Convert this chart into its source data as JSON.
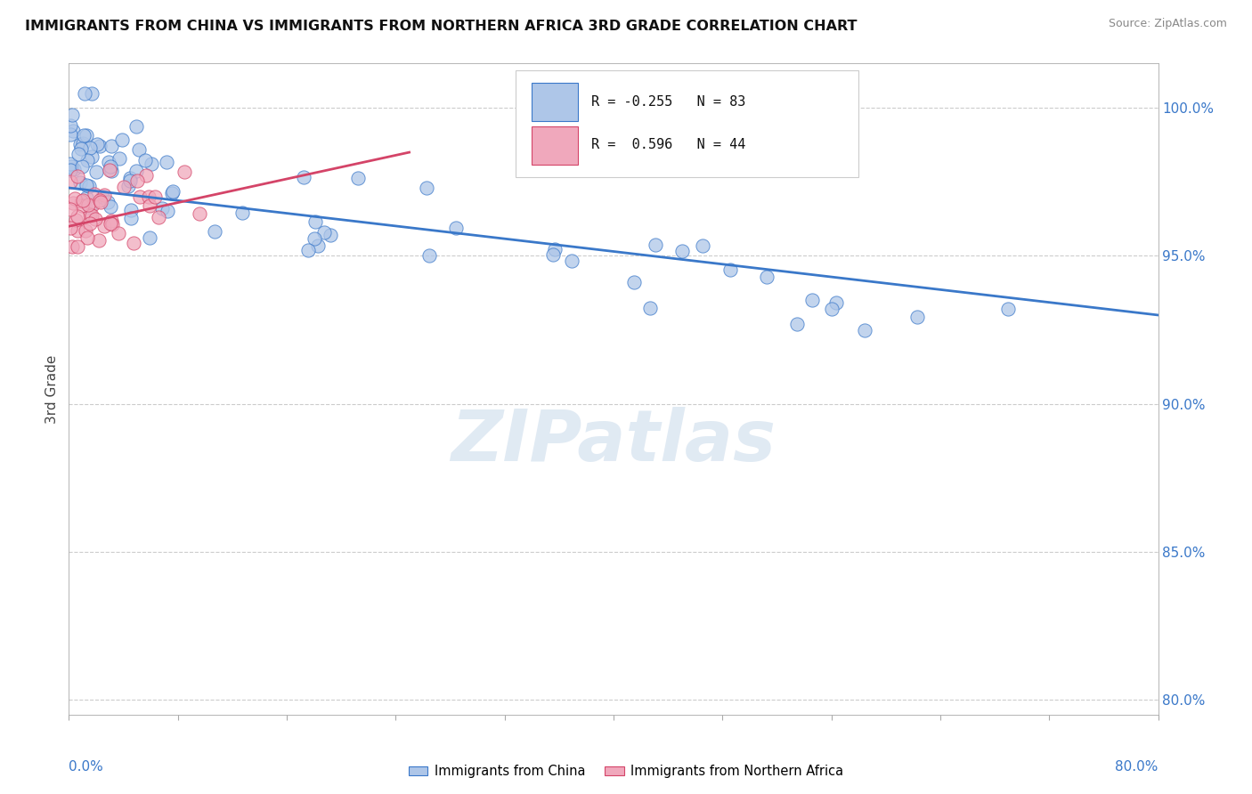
{
  "title": "IMMIGRANTS FROM CHINA VS IMMIGRANTS FROM NORTHERN AFRICA 3RD GRADE CORRELATION CHART",
  "source": "Source: ZipAtlas.com",
  "ylabel": "3rd Grade",
  "yticks": [
    80.0,
    85.0,
    90.0,
    95.0,
    100.0
  ],
  "ytick_labels": [
    "80.0%",
    "85.0%",
    "90.0%",
    "95.0%",
    "100.0%"
  ],
  "xlim": [
    0.0,
    80.0
  ],
  "ylim": [
    79.5,
    101.5
  ],
  "r_china": -0.255,
  "n_china": 83,
  "r_africa": 0.596,
  "n_africa": 44,
  "color_china": "#aec6e8",
  "color_africa": "#f0a8bc",
  "trendline_china": "#3a78c9",
  "trendline_africa": "#d44468",
  "watermark": "ZIPatlas",
  "watermark_color": "#ccdcec",
  "china_trendline_x": [
    0.0,
    80.0
  ],
  "china_trendline_y": [
    97.3,
    93.0
  ],
  "africa_trendline_x": [
    0.0,
    25.0
  ],
  "africa_trendline_y": [
    96.0,
    98.5
  ]
}
